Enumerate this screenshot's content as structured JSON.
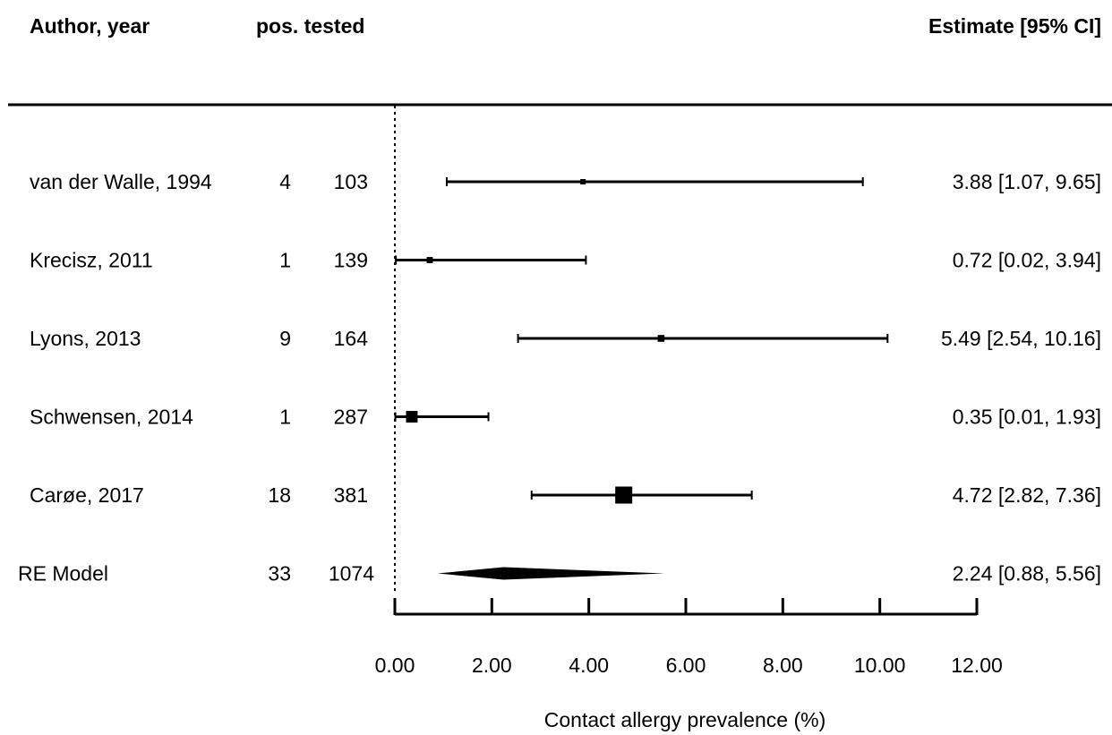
{
  "headers": {
    "author": "Author, year",
    "pos_tested": "pos. tested",
    "estimate": "Estimate [95% CI]"
  },
  "chart_data": {
    "type": "forest",
    "xlabel": "Contact allergy prevalence (%)",
    "xlim": [
      0,
      12
    ],
    "xticks": [
      "0.00",
      "2.00",
      "4.00",
      "6.00",
      "8.00",
      "10.00",
      "12.00"
    ],
    "reference_line": 0,
    "studies": [
      {
        "label": "van der Walle, 1994",
        "pos": "4",
        "tested": "103",
        "estimate": 3.88,
        "lower": 1.07,
        "upper": 9.65,
        "estimate_text": "3.88 [1.07,  9.65]"
      },
      {
        "label": "Krecisz, 2011",
        "pos": "1",
        "tested": "139",
        "estimate": 0.72,
        "lower": 0.02,
        "upper": 3.94,
        "estimate_text": "0.72 [0.02,  3.94]"
      },
      {
        "label": "Lyons, 2013",
        "pos": "9",
        "tested": "164",
        "estimate": 5.49,
        "lower": 2.54,
        "upper": 10.16,
        "estimate_text": "5.49 [2.54, 10.16]"
      },
      {
        "label": "Schwensen, 2014",
        "pos": "1",
        "tested": "287",
        "estimate": 0.35,
        "lower": 0.01,
        "upper": 1.93,
        "estimate_text": "0.35 [0.01,  1.93]"
      },
      {
        "label": "Carøe, 2017",
        "pos": "18",
        "tested": "381",
        "estimate": 4.72,
        "lower": 2.82,
        "upper": 7.36,
        "estimate_text": "4.72 [2.82,  7.36]"
      }
    ],
    "summary": {
      "label": "RE Model",
      "pos": "33",
      "tested": "1074",
      "estimate": 2.24,
      "lower": 0.88,
      "upper": 5.56,
      "estimate_text": "2.24 [0.88,  5.56]"
    }
  }
}
